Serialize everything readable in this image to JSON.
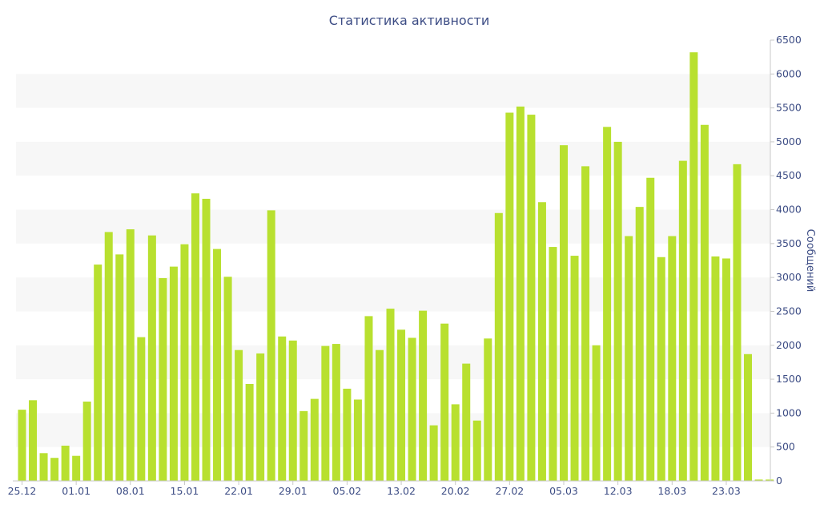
{
  "chart_data": {
    "type": "bar",
    "title": "Статистика активности",
    "ylabel": "Сообщений",
    "xlabel": "",
    "ylim": [
      0,
      6500
    ],
    "y_ticks": [
      0,
      500,
      1000,
      1500,
      2000,
      2500,
      3000,
      3500,
      4000,
      4500,
      5000,
      5500,
      6000,
      6500
    ],
    "y_axis_position": "right",
    "grid": "alternating horizontal bands",
    "x_tick_labels": [
      {
        "index": 0,
        "label": "25.12"
      },
      {
        "index": 5,
        "label": "01.01"
      },
      {
        "index": 10,
        "label": "08.01"
      },
      {
        "index": 15,
        "label": "15.01"
      },
      {
        "index": 20,
        "label": "22.01"
      },
      {
        "index": 25,
        "label": "29.01"
      },
      {
        "index": 30,
        "label": "05.02"
      },
      {
        "index": 35,
        "label": "13.02"
      },
      {
        "index": 40,
        "label": "20.02"
      },
      {
        "index": 45,
        "label": "27.02"
      },
      {
        "index": 50,
        "label": "05.03"
      },
      {
        "index": 55,
        "label": "12.03"
      },
      {
        "index": 60,
        "label": "18.03"
      },
      {
        "index": 65,
        "label": "23.03"
      }
    ],
    "values": [
      1050,
      1190,
      410,
      340,
      520,
      370,
      1170,
      3190,
      3670,
      3340,
      3710,
      2120,
      3620,
      2990,
      3160,
      3490,
      4240,
      4160,
      3420,
      3010,
      1930,
      1430,
      1880,
      3990,
      2130,
      2070,
      1030,
      1210,
      1990,
      2020,
      1360,
      1200,
      2430,
      1930,
      2540,
      2230,
      2110,
      2510,
      820,
      2320,
      1130,
      1730,
      890,
      2100,
      3950,
      5430,
      5520,
      5400,
      4110,
      3450,
      4950,
      3320,
      4640,
      2000,
      5220,
      5000,
      3610,
      4040,
      4470,
      3300,
      3610,
      4720,
      6320,
      5250,
      3310,
      3280,
      4670,
      1870,
      20,
      20
    ],
    "bar_color": "#b8e02f",
    "band_color": "#f7f7f7",
    "text_color": "#3d4d85"
  }
}
